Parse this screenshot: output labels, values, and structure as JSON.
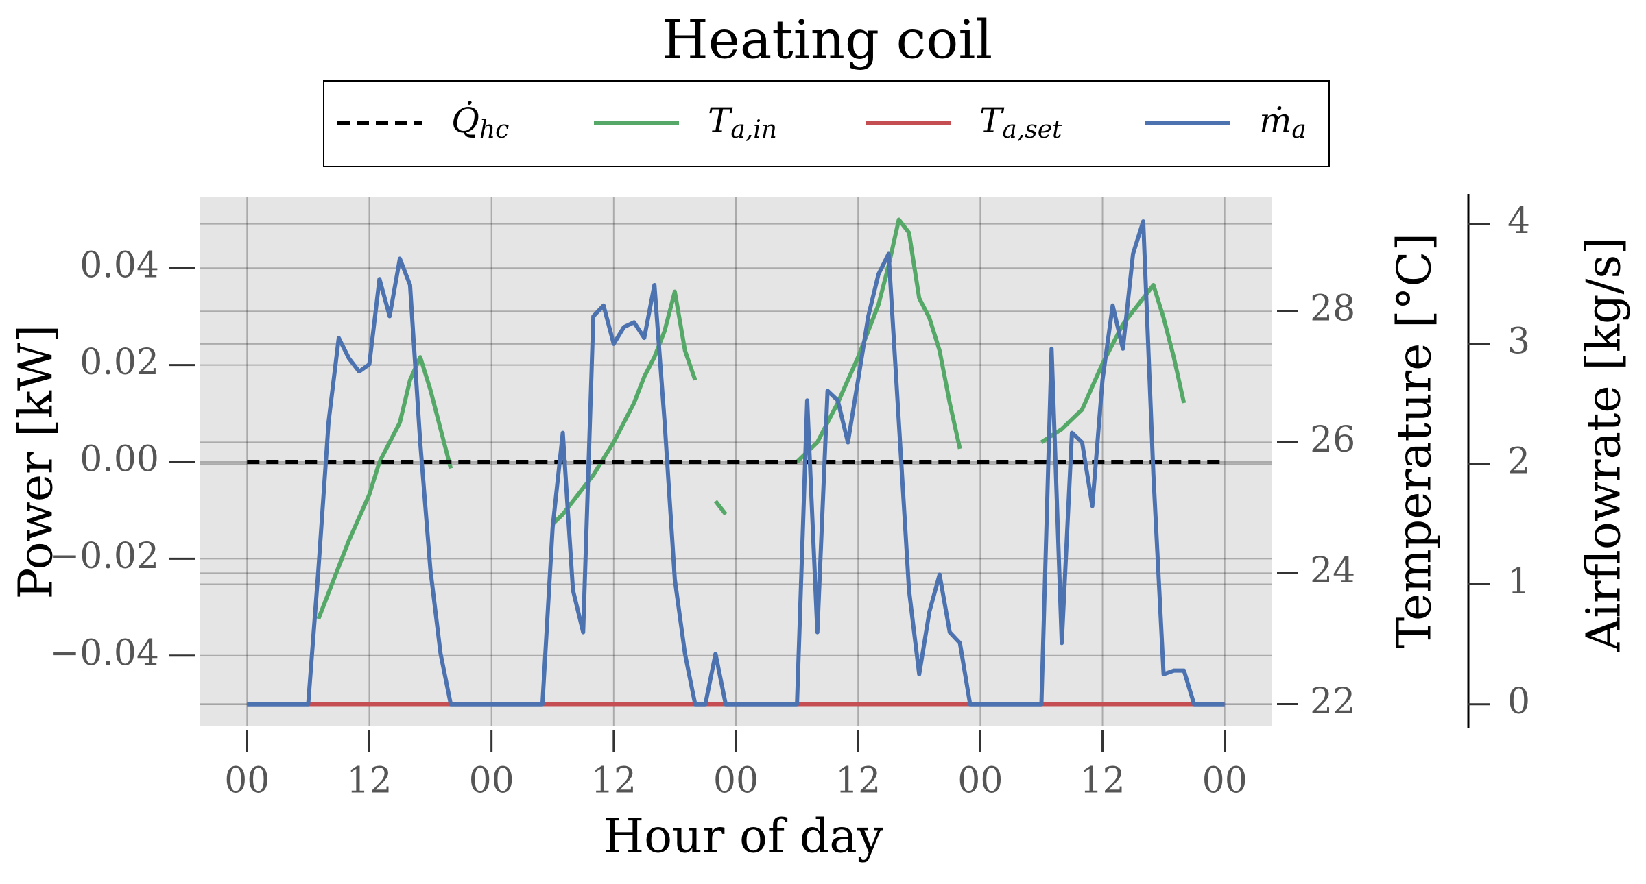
{
  "chart_data": {
    "type": "line",
    "title": "Heating coil",
    "xlabel": "Hour of day",
    "ylabel": "Power [kW]",
    "y2label": "Temperature [°C]",
    "y3label": "Airflowrate [kg/s]",
    "xlim": [
      -4.6,
      100.6
    ],
    "xticks": [
      {
        "value": 0,
        "label": "00"
      },
      12,
      {
        "value": 24,
        "label": "00"
      },
      {
        "value": 36,
        "label": "12"
      },
      {
        "value": 48,
        "label": "00"
      },
      {
        "value": 60,
        "label": "12"
      },
      {
        "value": 72,
        "label": "00"
      },
      {
        "value": 84,
        "label": "12"
      },
      {
        "value": 96,
        "label": "00"
      }
    ],
    "ylim": [
      -0.0546,
      0.0546
    ],
    "yticks": [
      {
        "value": -0.04,
        "label": "−0.04"
      },
      {
        "value": -0.02,
        "label": "−0.02"
      },
      {
        "value": 0,
        "label": "0.00"
      },
      0.02,
      0.04
    ],
    "y2lim": [
      21.66,
      29.74
    ],
    "y2ticks": [
      22,
      24,
      26,
      28
    ],
    "y3lim": [
      -0.184,
      4.22
    ],
    "y3ticks": [
      0,
      1,
      2,
      3,
      4
    ],
    "grid": true,
    "legend": "top",
    "x": [
      0,
      1,
      2,
      3,
      4,
      5,
      6,
      7,
      8,
      9,
      10,
      11,
      12,
      13,
      14,
      15,
      16,
      17,
      18,
      19,
      20,
      21,
      22,
      23,
      24,
      25,
      26,
      27,
      28,
      29,
      30,
      31,
      32,
      33,
      34,
      35,
      36,
      37,
      38,
      39,
      40,
      41,
      42,
      43,
      44,
      45,
      46,
      47,
      48,
      49,
      50,
      51,
      52,
      53,
      54,
      55,
      56,
      57,
      58,
      59,
      60,
      61,
      62,
      63,
      64,
      65,
      66,
      67,
      68,
      69,
      70,
      71,
      72,
      73,
      74,
      75,
      76,
      77,
      78,
      79,
      80,
      81,
      82,
      83,
      84,
      85,
      86,
      87,
      88,
      89,
      90,
      91,
      92,
      93,
      94,
      95,
      96
    ],
    "series": [
      {
        "name": "Q̇hc",
        "color": "#000000",
        "dashed": true,
        "axis": "y",
        "values": [
          0,
          0,
          0,
          0,
          0,
          0,
          0,
          0,
          0,
          0,
          0,
          0,
          0,
          0,
          0,
          0,
          0,
          0,
          0,
          0,
          0,
          0,
          0,
          0,
          0,
          0,
          0,
          0,
          0,
          0,
          0,
          0,
          0,
          0,
          0,
          0,
          0,
          0,
          0,
          0,
          0,
          0,
          0,
          0,
          0,
          0,
          0,
          0,
          0,
          0,
          0,
          0,
          0,
          0,
          0,
          0,
          0,
          0,
          0,
          0,
          0,
          0,
          0,
          0,
          0,
          0,
          0,
          0,
          0,
          0,
          0,
          0,
          0,
          0,
          0,
          0,
          0,
          0,
          0,
          0,
          0,
          0,
          0,
          0,
          0,
          0,
          0,
          0,
          0,
          0,
          0,
          0,
          0,
          0,
          0,
          0,
          0
        ]
      },
      {
        "name": "Ta,in",
        "color": "#55a868",
        "axis": "y2",
        "values": [
          null,
          null,
          null,
          null,
          null,
          null,
          null,
          23.3,
          23.7,
          24.1,
          24.5,
          24.85,
          25.2,
          25.7,
          26.0,
          26.3,
          26.95,
          27.3,
          26.8,
          26.2,
          25.6,
          null,
          null,
          null,
          null,
          null,
          null,
          null,
          null,
          null,
          24.75,
          24.9,
          25.1,
          25.3,
          25.5,
          25.75,
          26.0,
          26.3,
          26.6,
          27.0,
          27.3,
          27.7,
          28.3,
          27.4,
          26.95,
          null,
          25.1,
          24.9,
          null,
          null,
          null,
          null,
          null,
          null,
          25.7,
          25.85,
          26.0,
          26.3,
          26.6,
          26.95,
          27.3,
          27.7,
          28.1,
          28.7,
          29.4,
          29.2,
          28.2,
          27.9,
          27.4,
          26.6,
          25.9,
          null,
          null,
          null,
          null,
          null,
          null,
          null,
          26.0,
          26.1,
          26.2,
          26.35,
          26.5,
          26.85,
          27.2,
          27.5,
          27.8,
          28.0,
          28.2,
          28.4,
          27.9,
          27.3,
          26.6,
          null,
          null,
          null,
          null
        ]
      },
      {
        "name": "Ta,set",
        "color": "#c44e52",
        "axis": "y2",
        "values": [
          22,
          22,
          22,
          22,
          22,
          22,
          22,
          22,
          22,
          22,
          22,
          22,
          22,
          22,
          22,
          22,
          22,
          22,
          22,
          22,
          22,
          22,
          22,
          22,
          22,
          22,
          22,
          22,
          22,
          22,
          22,
          22,
          22,
          22,
          22,
          22,
          22,
          22,
          22,
          22,
          22,
          22,
          22,
          22,
          22,
          22,
          22,
          22,
          22,
          22,
          22,
          22,
          22,
          22,
          22,
          22,
          22,
          22,
          22,
          22,
          22,
          22,
          22,
          22,
          22,
          22,
          22,
          22,
          22,
          22,
          22,
          22,
          22,
          22,
          22,
          22,
          22,
          22,
          22,
          22,
          22,
          22,
          22,
          22,
          22,
          22,
          22,
          22,
          22,
          22,
          22,
          22,
          22,
          22,
          22,
          22,
          22
        ]
      },
      {
        "name": "ṁa",
        "color": "#4c72b0",
        "axis": "y3",
        "values": [
          0,
          0,
          0,
          0,
          0,
          0,
          0,
          1.12,
          2.35,
          3.05,
          2.88,
          2.77,
          2.83,
          3.54,
          3.23,
          3.71,
          3.49,
          2.18,
          1.12,
          0.42,
          0,
          0,
          0,
          0,
          0,
          0,
          0,
          0,
          0,
          0,
          1.47,
          2.26,
          0.95,
          0.6,
          3.23,
          3.32,
          3.0,
          3.14,
          3.18,
          3.05,
          3.49,
          2.35,
          1.04,
          0.42,
          0,
          0,
          0.42,
          0,
          0,
          0,
          0,
          0,
          0,
          0,
          0,
          2.53,
          0.6,
          2.61,
          2.53,
          2.18,
          2.7,
          3.23,
          3.58,
          3.75,
          2.35,
          0.95,
          0.25,
          0.77,
          1.08,
          0.6,
          0.51,
          0,
          0,
          0,
          0,
          0,
          0,
          0,
          0,
          2.96,
          0.51,
          2.26,
          2.18,
          1.65,
          2.7,
          3.32,
          2.96,
          3.75,
          4.02,
          1.91,
          0.25,
          0.28,
          0.28,
          0,
          0,
          0,
          0
        ]
      }
    ]
  }
}
